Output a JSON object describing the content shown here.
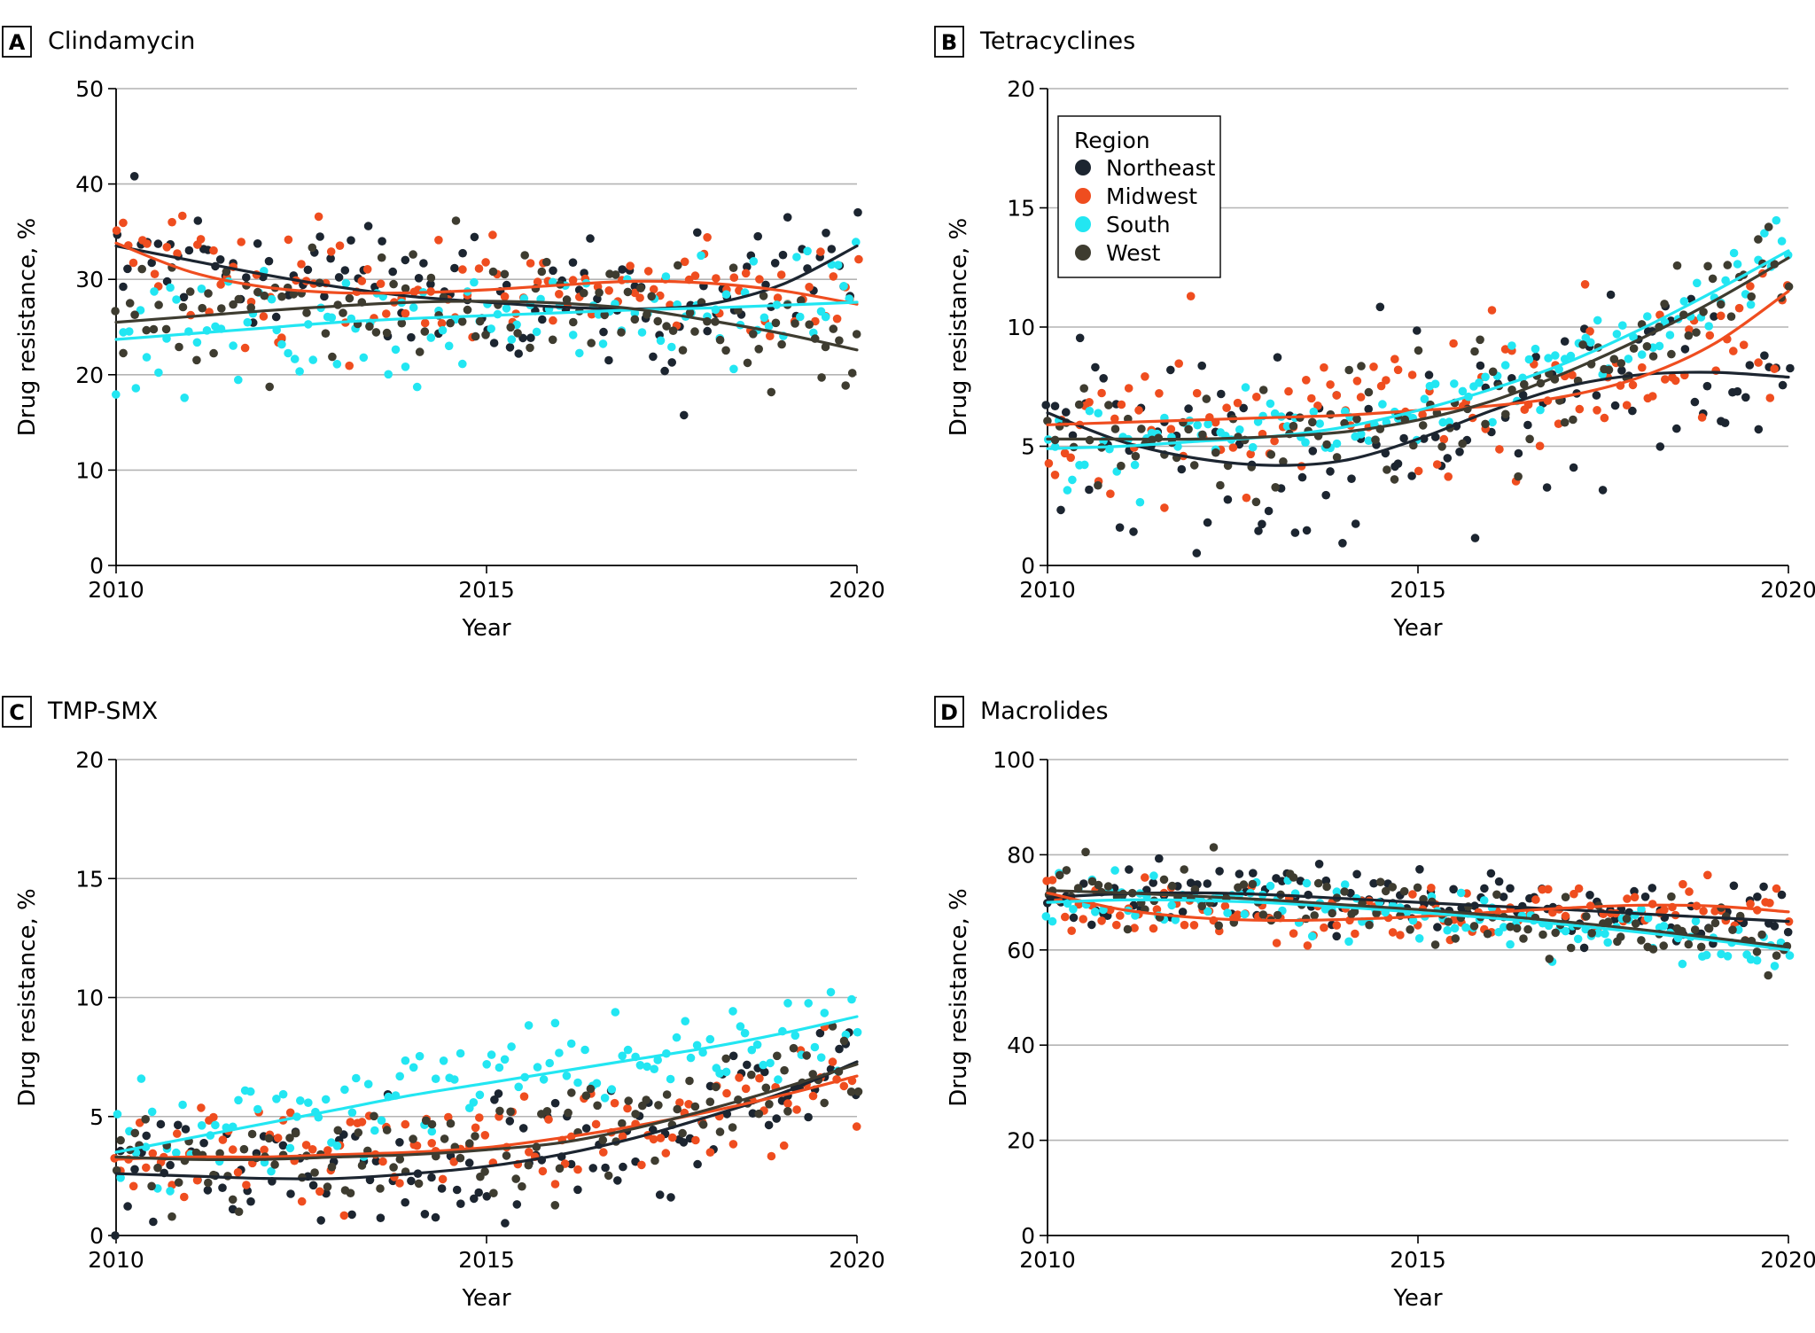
{
  "figure": {
    "x_label": "Year",
    "y_label": "Drug resistance, %"
  },
  "legend": {
    "title": "Region",
    "entries": [
      {
        "name": "Northeast",
        "color": "#1c2530"
      },
      {
        "name": "Midwest",
        "color": "#ef4d1f"
      },
      {
        "name": "South",
        "color": "#22e6f2"
      },
      {
        "name": "West",
        "color": "#3e3c30"
      }
    ]
  },
  "chart_data": [
    {
      "type": "scatter",
      "panel": "A",
      "title": "Clindamycin",
      "xlabel": "Year",
      "ylabel": "Drug resistance, %",
      "xlim": [
        2010,
        2020
      ],
      "ylim": [
        0,
        50
      ],
      "x_ticks": [
        2010,
        2015,
        2020
      ],
      "y_ticks": [
        0,
        10,
        20,
        30,
        40,
        50
      ],
      "grid": true,
      "series": [
        {
          "name": "Northeast",
          "x": [
            2010,
            2011,
            2012,
            2013,
            2014,
            2015,
            2016,
            2017,
            2018,
            2019,
            2020
          ],
          "trend": [
            33.5,
            32.0,
            30.5,
            29.2,
            28.2,
            27.6,
            27.1,
            26.9,
            27.4,
            29.5,
            33.5
          ],
          "scatter_spread": 3.5,
          "color": "#1c2530"
        },
        {
          "name": "Midwest",
          "x": [
            2010,
            2011,
            2012,
            2013,
            2014,
            2015,
            2016,
            2017,
            2018,
            2019,
            2020
          ],
          "trend": [
            33.8,
            30.8,
            29.2,
            28.6,
            28.6,
            28.9,
            29.4,
            29.8,
            29.6,
            28.8,
            27.4
          ],
          "scatter_spread": 3.0,
          "color": "#ef4d1f"
        },
        {
          "name": "South",
          "x": [
            2010,
            2011,
            2012,
            2013,
            2014,
            2015,
            2016,
            2017,
            2018,
            2019,
            2020
          ],
          "trend": [
            23.7,
            24.3,
            24.9,
            25.5,
            25.9,
            26.2,
            26.5,
            26.8,
            27.0,
            27.3,
            27.6
          ],
          "scatter_spread": 2.5,
          "color": "#22e6f2"
        },
        {
          "name": "West",
          "x": [
            2010,
            2011,
            2012,
            2013,
            2014,
            2015,
            2016,
            2017,
            2018,
            2019,
            2020
          ],
          "trend": [
            25.5,
            26.1,
            26.7,
            27.2,
            27.6,
            27.7,
            27.5,
            26.9,
            25.7,
            24.3,
            22.6
          ],
          "scatter_spread": 3.0,
          "color": "#3e3c30"
        }
      ]
    },
    {
      "type": "scatter",
      "panel": "B",
      "title": "Tetracyclines",
      "xlabel": "Year",
      "ylabel": "Drug resistance, %",
      "xlim": [
        2010,
        2020
      ],
      "ylim": [
        0,
        20
      ],
      "x_ticks": [
        2010,
        2015,
        2020
      ],
      "y_ticks": [
        0,
        5,
        10,
        15,
        20
      ],
      "grid": true,
      "series": [
        {
          "name": "Northeast",
          "x": [
            2010,
            2011,
            2012,
            2013,
            2014,
            2015,
            2016,
            2017,
            2018,
            2019,
            2020
          ],
          "trend": [
            6.4,
            5.2,
            4.5,
            4.2,
            4.4,
            5.3,
            6.5,
            7.5,
            8.0,
            8.1,
            7.9
          ],
          "scatter_spread": 2.2,
          "color": "#1c2530"
        },
        {
          "name": "Midwest",
          "x": [
            2010,
            2011,
            2012,
            2013,
            2014,
            2015,
            2016,
            2017,
            2018,
            2019,
            2020
          ],
          "trend": [
            5.9,
            6.0,
            6.1,
            6.2,
            6.3,
            6.5,
            6.7,
            7.1,
            7.9,
            9.3,
            11.5
          ],
          "scatter_spread": 1.5,
          "color": "#ef4d1f"
        },
        {
          "name": "South",
          "x": [
            2010,
            2011,
            2012,
            2013,
            2014,
            2015,
            2016,
            2017,
            2018,
            2019,
            2020
          ],
          "trend": [
            4.9,
            5.0,
            5.2,
            5.4,
            5.8,
            6.5,
            7.4,
            8.5,
            9.9,
            11.5,
            13.2
          ],
          "scatter_spread": 0.8,
          "color": "#22e6f2"
        },
        {
          "name": "West",
          "x": [
            2010,
            2011,
            2012,
            2013,
            2014,
            2015,
            2016,
            2017,
            2018,
            2019,
            2020
          ],
          "trend": [
            5.3,
            5.3,
            5.3,
            5.4,
            5.6,
            6.1,
            6.9,
            8.1,
            9.5,
            11.1,
            12.9
          ],
          "scatter_spread": 1.2,
          "color": "#3e3c30"
        }
      ]
    },
    {
      "type": "scatter",
      "panel": "C",
      "title": "TMP-SMX",
      "xlabel": "Year",
      "ylabel": "Drug resistance, %",
      "xlim": [
        2010,
        2020
      ],
      "ylim": [
        0,
        20
      ],
      "x_ticks": [
        2010,
        2015,
        2020
      ],
      "y_ticks": [
        0,
        5,
        10,
        15,
        20
      ],
      "grid": true,
      "series": [
        {
          "name": "Northeast",
          "x": [
            2010,
            2011,
            2012,
            2013,
            2014,
            2015,
            2016,
            2017,
            2018,
            2019,
            2020
          ],
          "trend": [
            2.6,
            2.5,
            2.4,
            2.4,
            2.6,
            2.9,
            3.4,
            4.1,
            5.0,
            6.0,
            7.3
          ],
          "scatter_spread": 1.3,
          "color": "#1c2530"
        },
        {
          "name": "Midwest",
          "x": [
            2010,
            2011,
            2012,
            2013,
            2014,
            2015,
            2016,
            2017,
            2018,
            2019,
            2020
          ],
          "trend": [
            3.2,
            3.3,
            3.3,
            3.4,
            3.5,
            3.7,
            4.1,
            4.6,
            5.2,
            5.9,
            6.7
          ],
          "scatter_spread": 1.0,
          "color": "#ef4d1f"
        },
        {
          "name": "South",
          "x": [
            2010,
            2011,
            2012,
            2013,
            2014,
            2015,
            2016,
            2017,
            2018,
            2019,
            2020
          ],
          "trend": [
            3.5,
            4.1,
            4.7,
            5.3,
            5.9,
            6.4,
            6.9,
            7.4,
            7.9,
            8.5,
            9.2
          ],
          "scatter_spread": 1.0,
          "color": "#22e6f2"
        },
        {
          "name": "West",
          "x": [
            2010,
            2011,
            2012,
            2013,
            2014,
            2015,
            2016,
            2017,
            2018,
            2019,
            2020
          ],
          "trend": [
            3.3,
            3.2,
            3.2,
            3.3,
            3.4,
            3.6,
            3.9,
            4.5,
            5.3,
            6.2,
            7.2
          ],
          "scatter_spread": 1.1,
          "color": "#3e3c30"
        }
      ]
    },
    {
      "type": "scatter",
      "panel": "D",
      "title": "Macrolides",
      "xlabel": "Year",
      "ylabel": "Drug resistance, %",
      "xlim": [
        2010,
        2020
      ],
      "ylim": [
        0,
        100
      ],
      "x_ticks": [
        2010,
        2015,
        2020
      ],
      "y_ticks": [
        0,
        20,
        40,
        60,
        80,
        100
      ],
      "grid": true,
      "series": [
        {
          "name": "Northeast",
          "x": [
            2010,
            2011,
            2012,
            2013,
            2014,
            2015,
            2016,
            2017,
            2018,
            2019,
            2020
          ],
          "trend": [
            71.0,
            71.8,
            72.0,
            71.6,
            70.8,
            70.0,
            69.2,
            68.5,
            67.6,
            66.8,
            66.0
          ],
          "scatter_spread": 3.5,
          "color": "#1c2530"
        },
        {
          "name": "Midwest",
          "x": [
            2010,
            2011,
            2012,
            2013,
            2014,
            2015,
            2016,
            2017,
            2018,
            2019,
            2020
          ],
          "trend": [
            72.0,
            68.5,
            66.8,
            66.2,
            66.4,
            67.0,
            67.9,
            68.8,
            69.4,
            69.2,
            68.0
          ],
          "scatter_spread": 3.0,
          "color": "#ef4d1f"
        },
        {
          "name": "South",
          "x": [
            2010,
            2011,
            2012,
            2013,
            2014,
            2015,
            2016,
            2017,
            2018,
            2019,
            2020
          ],
          "trend": [
            70.0,
            70.5,
            70.4,
            69.9,
            69.0,
            67.9,
            66.7,
            65.3,
            63.7,
            62.0,
            60.0
          ],
          "scatter_spread": 3.0,
          "color": "#22e6f2"
        },
        {
          "name": "West",
          "x": [
            2010,
            2011,
            2012,
            2013,
            2014,
            2015,
            2016,
            2017,
            2018,
            2019,
            2020
          ],
          "trend": [
            72.5,
            72.0,
            71.3,
            70.5,
            69.5,
            68.5,
            67.3,
            65.9,
            64.3,
            62.5,
            60.6
          ],
          "scatter_spread": 3.5,
          "color": "#3e3c30"
        }
      ]
    }
  ]
}
